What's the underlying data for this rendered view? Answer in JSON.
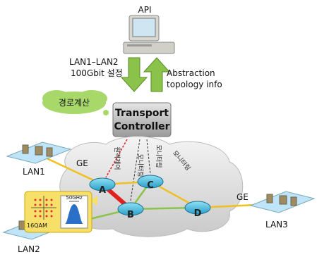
{
  "api": "API",
  "request": [
    "LAN1–LAN2",
    "100Gbit 설정"
  ],
  "abstraction": [
    "Abstraction",
    "topology info"
  ],
  "path_computation": "경로계산",
  "controller": [
    "Transport",
    "Controller"
  ],
  "control_labels": [
    "원격제어",
    "모니터링",
    "모니터링",
    "모니터링"
  ],
  "nodes": [
    "A",
    "B",
    "C",
    "D"
  ],
  "lans": [
    "LAN1",
    "LAN2",
    "LAN3"
  ],
  "ge_labels": [
    "GE",
    "GE"
  ],
  "spectrum": {
    "bandwidth": "50GHz",
    "modulation": "16QAM"
  }
}
